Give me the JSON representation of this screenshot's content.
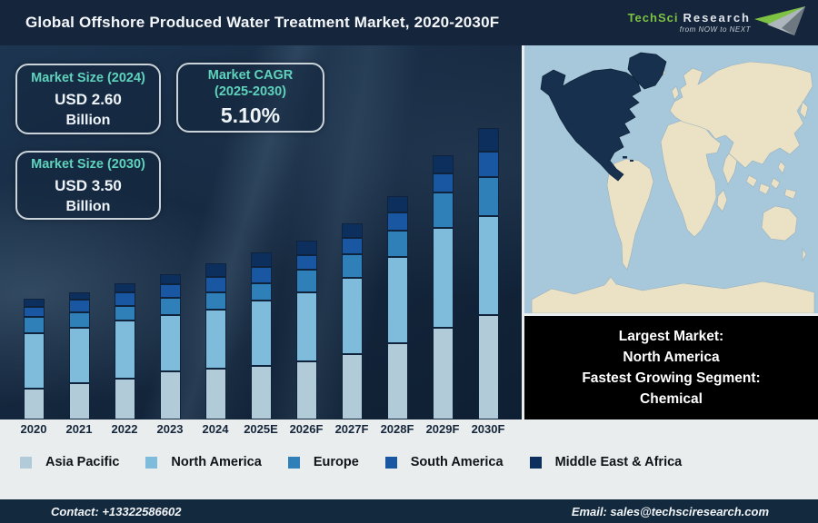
{
  "header": {
    "title": "Global Offshore Produced Water Treatment Market, 2020-2030F",
    "logo": {
      "brand_primary": "TechSci",
      "brand_secondary": "Research",
      "tagline": "from NOW to NEXT",
      "brand_color": "#7dc242"
    }
  },
  "info_boxes": [
    {
      "title": "Market Size (2024)",
      "value": "USD 2.60",
      "unit": "Billion"
    },
    {
      "title": "Market CAGR",
      "subtitle": "(2025-2030)",
      "value": "5.10%"
    },
    {
      "title": "Market Size (2030)",
      "value": "USD 3.50",
      "unit": "Billion"
    }
  ],
  "chart_data": {
    "type": "bar",
    "stacked": true,
    "title": "Global Offshore Produced Water Treatment Market, 2020-2030F",
    "note": "No numeric y-axis shown; values are stacked segment heights in on-screen pixels (plot baseline at bottom of dark panel)",
    "categories": [
      "2020",
      "2021",
      "2022",
      "2023",
      "2024",
      "2025E",
      "2026F",
      "2027F",
      "2028F",
      "2029F",
      "2030F"
    ],
    "series": [
      {
        "name": "Asia Pacific",
        "color": "#b2cbd8",
        "values": [
          34,
          40,
          45,
          53,
          56,
          59,
          64,
          72,
          84,
          101,
          115
        ]
      },
      {
        "name": "North America",
        "color": "#7fbcdb",
        "values": [
          61,
          61,
          64,
          62,
          65,
          72,
          76,
          84,
          95,
          110,
          109
        ]
      },
      {
        "name": "Europe",
        "color": "#2f7fb9",
        "values": [
          18,
          17,
          16,
          19,
          19,
          19,
          25,
          26,
          29,
          39,
          43
        ]
      },
      {
        "name": "South America",
        "color": "#1a57a2",
        "values": [
          11,
          14,
          15,
          15,
          17,
          18,
          16,
          18,
          20,
          21,
          28
        ]
      },
      {
        "name": "Middle East & Africa",
        "color": "#0c2f5e",
        "values": [
          9,
          8,
          10,
          11,
          15,
          16,
          16,
          16,
          18,
          20,
          26
        ]
      }
    ],
    "legend_position": "bottom",
    "grid": false,
    "key_facts": {
      "market_size_2024": "USD 2.60 Billion",
      "market_size_2030": "USD 3.50 Billion",
      "cagr_2025_2030": "5.10%"
    }
  },
  "map": {
    "highlighted_region": "North America",
    "ocean_color": "#a6c8da",
    "land_color": "#ebe2c6",
    "highlight_color": "#16304e"
  },
  "callout": {
    "lines": [
      "Largest Market:",
      "North America",
      "Fastest Growing Segment:",
      "Chemical"
    ]
  },
  "footer": {
    "contact": "Contact: +13322586602",
    "email": "Email: sales@techsciresearch.com"
  },
  "colors": {
    "header_bg": "#15253c",
    "chart_bg": "#15283f",
    "accent_teal": "#5fd2bc",
    "strip_bg": "#e9edee",
    "footer_bg": "#13293d",
    "callout_bg": "#000000"
  }
}
